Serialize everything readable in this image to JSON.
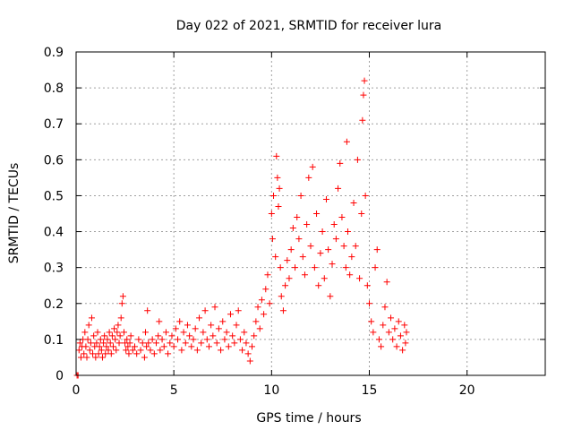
{
  "chart_data": {
    "type": "scatter",
    "title": "Day 022 of 2021, SRMTID for receiver lura",
    "xlabel": "GPS time / hours",
    "ylabel": "SRMTID / TECUs",
    "xlim": [
      0,
      24
    ],
    "ylim": [
      0,
      0.9
    ],
    "xticks": [
      0,
      5,
      10,
      15,
      20
    ],
    "yticks": [
      0,
      0.1,
      0.2,
      0.3,
      0.4,
      0.5,
      0.6,
      0.7,
      0.8,
      0.9
    ],
    "xtick_labels": [
      "0",
      "5",
      "10",
      "15",
      "20"
    ],
    "ytick_labels": [
      "0",
      "0.1",
      "0.2",
      "0.3",
      "0.4",
      "0.5",
      "0.6",
      "0.7",
      "0.8",
      "0.9"
    ],
    "grid": true,
    "marker": "plus",
    "color": "#ff0000",
    "series": [
      {
        "name": "SRMTID",
        "points": [
          [
            0.05,
            0.0
          ],
          [
            0.1,
            0.0
          ],
          [
            0.15,
            0.07
          ],
          [
            0.2,
            0.09
          ],
          [
            0.25,
            0.05
          ],
          [
            0.3,
            0.08
          ],
          [
            0.35,
            0.1
          ],
          [
            0.4,
            0.06
          ],
          [
            0.45,
            0.12
          ],
          [
            0.5,
            0.08
          ],
          [
            0.55,
            0.05
          ],
          [
            0.6,
            0.1
          ],
          [
            0.65,
            0.14
          ],
          [
            0.7,
            0.07
          ],
          [
            0.75,
            0.09
          ],
          [
            0.8,
            0.16
          ],
          [
            0.85,
            0.06
          ],
          [
            0.9,
            0.11
          ],
          [
            0.95,
            0.08
          ],
          [
            1.0,
            0.05
          ],
          [
            1.05,
            0.09
          ],
          [
            1.1,
            0.12
          ],
          [
            1.15,
            0.06
          ],
          [
            1.2,
            0.08
          ],
          [
            1.25,
            0.1
          ],
          [
            1.3,
            0.07
          ],
          [
            1.35,
            0.05
          ],
          [
            1.4,
            0.09
          ],
          [
            1.45,
            0.11
          ],
          [
            1.5,
            0.06
          ],
          [
            1.55,
            0.08
          ],
          [
            1.6,
            0.1
          ],
          [
            1.65,
            0.07
          ],
          [
            1.7,
            0.12
          ],
          [
            1.75,
            0.09
          ],
          [
            1.8,
            0.06
          ],
          [
            1.85,
            0.11
          ],
          [
            1.9,
            0.08
          ],
          [
            1.95,
            0.13
          ],
          [
            2.0,
            0.1
          ],
          [
            2.05,
            0.07
          ],
          [
            2.1,
            0.12
          ],
          [
            2.15,
            0.14
          ],
          [
            2.2,
            0.09
          ],
          [
            2.25,
            0.11
          ],
          [
            2.3,
            0.16
          ],
          [
            2.35,
            0.2
          ],
          [
            2.4,
            0.22
          ],
          [
            2.45,
            0.12
          ],
          [
            2.5,
            0.09
          ],
          [
            2.55,
            0.07
          ],
          [
            2.6,
            0.1
          ],
          [
            2.65,
            0.08
          ],
          [
            2.7,
            0.06
          ],
          [
            2.75,
            0.09
          ],
          [
            2.8,
            0.11
          ],
          [
            2.9,
            0.07
          ],
          [
            3.0,
            0.08
          ],
          [
            3.1,
            0.06
          ],
          [
            3.2,
            0.1
          ],
          [
            3.3,
            0.07
          ],
          [
            3.4,
            0.09
          ],
          [
            3.5,
            0.05
          ],
          [
            3.55,
            0.12
          ],
          [
            3.6,
            0.08
          ],
          [
            3.65,
            0.18
          ],
          [
            3.7,
            0.09
          ],
          [
            3.8,
            0.07
          ],
          [
            3.9,
            0.1
          ],
          [
            4.0,
            0.06
          ],
          [
            4.1,
            0.09
          ],
          [
            4.2,
            0.11
          ],
          [
            4.25,
            0.15
          ],
          [
            4.3,
            0.07
          ],
          [
            4.4,
            0.1
          ],
          [
            4.5,
            0.08
          ],
          [
            4.6,
            0.12
          ],
          [
            4.7,
            0.06
          ],
          [
            4.8,
            0.09
          ],
          [
            4.9,
            0.11
          ],
          [
            5.0,
            0.08
          ],
          [
            5.1,
            0.13
          ],
          [
            5.2,
            0.1
          ],
          [
            5.3,
            0.15
          ],
          [
            5.4,
            0.07
          ],
          [
            5.5,
            0.12
          ],
          [
            5.6,
            0.09
          ],
          [
            5.7,
            0.14
          ],
          [
            5.8,
            0.11
          ],
          [
            5.9,
            0.08
          ],
          [
            6.0,
            0.1
          ],
          [
            6.1,
            0.13
          ],
          [
            6.2,
            0.07
          ],
          [
            6.3,
            0.16
          ],
          [
            6.4,
            0.09
          ],
          [
            6.5,
            0.12
          ],
          [
            6.6,
            0.18
          ],
          [
            6.7,
            0.1
          ],
          [
            6.8,
            0.08
          ],
          [
            6.9,
            0.14
          ],
          [
            7.0,
            0.11
          ],
          [
            7.1,
            0.19
          ],
          [
            7.2,
            0.09
          ],
          [
            7.3,
            0.13
          ],
          [
            7.4,
            0.07
          ],
          [
            7.5,
            0.15
          ],
          [
            7.6,
            0.1
          ],
          [
            7.7,
            0.12
          ],
          [
            7.8,
            0.08
          ],
          [
            7.9,
            0.17
          ],
          [
            8.0,
            0.11
          ],
          [
            8.1,
            0.09
          ],
          [
            8.2,
            0.14
          ],
          [
            8.3,
            0.18
          ],
          [
            8.4,
            0.1
          ],
          [
            8.5,
            0.07
          ],
          [
            8.6,
            0.12
          ],
          [
            8.7,
            0.09
          ],
          [
            8.8,
            0.06
          ],
          [
            8.9,
            0.04
          ],
          [
            9.0,
            0.08
          ],
          [
            9.1,
            0.11
          ],
          [
            9.2,
            0.15
          ],
          [
            9.3,
            0.19
          ],
          [
            9.4,
            0.13
          ],
          [
            9.5,
            0.21
          ],
          [
            9.6,
            0.17
          ],
          [
            9.7,
            0.24
          ],
          [
            9.8,
            0.28
          ],
          [
            9.9,
            0.2
          ],
          [
            10.0,
            0.45
          ],
          [
            10.05,
            0.38
          ],
          [
            10.1,
            0.5
          ],
          [
            10.2,
            0.33
          ],
          [
            10.25,
            0.61
          ],
          [
            10.3,
            0.55
          ],
          [
            10.35,
            0.47
          ],
          [
            10.4,
            0.52
          ],
          [
            10.45,
            0.3
          ],
          [
            10.5,
            0.22
          ],
          [
            10.6,
            0.18
          ],
          [
            10.7,
            0.25
          ],
          [
            10.8,
            0.32
          ],
          [
            10.9,
            0.27
          ],
          [
            11.0,
            0.35
          ],
          [
            11.1,
            0.41
          ],
          [
            11.2,
            0.3
          ],
          [
            11.3,
            0.44
          ],
          [
            11.4,
            0.38
          ],
          [
            11.5,
            0.5
          ],
          [
            11.6,
            0.33
          ],
          [
            11.7,
            0.28
          ],
          [
            11.8,
            0.42
          ],
          [
            11.9,
            0.55
          ],
          [
            12.0,
            0.36
          ],
          [
            12.1,
            0.58
          ],
          [
            12.2,
            0.3
          ],
          [
            12.3,
            0.45
          ],
          [
            12.4,
            0.25
          ],
          [
            12.5,
            0.34
          ],
          [
            12.6,
            0.4
          ],
          [
            12.7,
            0.27
          ],
          [
            12.8,
            0.49
          ],
          [
            12.9,
            0.35
          ],
          [
            13.0,
            0.22
          ],
          [
            13.1,
            0.31
          ],
          [
            13.2,
            0.42
          ],
          [
            13.3,
            0.38
          ],
          [
            13.4,
            0.52
          ],
          [
            13.5,
            0.59
          ],
          [
            13.6,
            0.44
          ],
          [
            13.7,
            0.36
          ],
          [
            13.8,
            0.3
          ],
          [
            13.85,
            0.65
          ],
          [
            13.9,
            0.4
          ],
          [
            14.0,
            0.28
          ],
          [
            14.1,
            0.33
          ],
          [
            14.2,
            0.48
          ],
          [
            14.3,
            0.36
          ],
          [
            14.4,
            0.6
          ],
          [
            14.5,
            0.27
          ],
          [
            14.6,
            0.45
          ],
          [
            14.65,
            0.71
          ],
          [
            14.7,
            0.78
          ],
          [
            14.75,
            0.82
          ],
          [
            14.8,
            0.5
          ],
          [
            14.9,
            0.25
          ],
          [
            15.0,
            0.2
          ],
          [
            15.1,
            0.15
          ],
          [
            15.2,
            0.12
          ],
          [
            15.3,
            0.3
          ],
          [
            15.4,
            0.35
          ],
          [
            15.5,
            0.1
          ],
          [
            15.6,
            0.08
          ],
          [
            15.7,
            0.14
          ],
          [
            15.8,
            0.19
          ],
          [
            15.9,
            0.26
          ],
          [
            16.0,
            0.12
          ],
          [
            16.1,
            0.16
          ],
          [
            16.2,
            0.1
          ],
          [
            16.3,
            0.13
          ],
          [
            16.4,
            0.08
          ],
          [
            16.5,
            0.15
          ],
          [
            16.6,
            0.11
          ],
          [
            16.7,
            0.07
          ],
          [
            16.8,
            0.14
          ],
          [
            16.85,
            0.09
          ],
          [
            16.9,
            0.12
          ]
        ]
      }
    ]
  }
}
